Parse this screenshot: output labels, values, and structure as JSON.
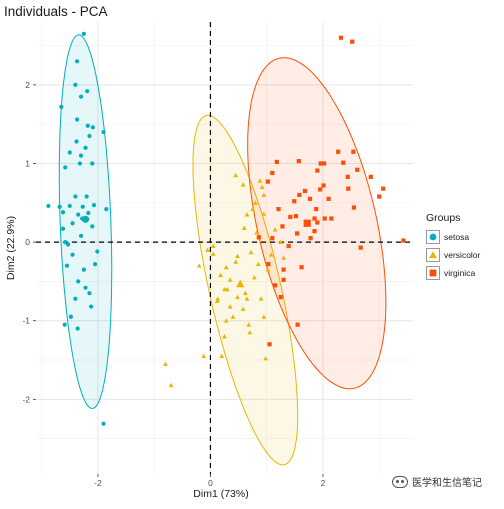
{
  "chart_data": {
    "type": "scatter",
    "title": "Individuals - PCA",
    "xlabel": "Dim1 (73%)",
    "ylabel": "Dim2 (22.9%)",
    "xlim": [
      -3.1,
      3.6
    ],
    "ylim": [
      -2.95,
      2.8
    ],
    "xticks": [
      -2,
      0,
      2
    ],
    "yticks": [
      -2,
      -1,
      0,
      1,
      2
    ],
    "grid": true,
    "reference_lines": {
      "x": 0,
      "y": 0,
      "style": "dashed"
    },
    "legend": {
      "title": "Groups",
      "position": "right"
    },
    "series": [
      {
        "name": "setosa",
        "color": "#00AFBB",
        "marker": "circle",
        "ellipse": {
          "cx": -2.22,
          "cy": 0.26,
          "rx": 2.38,
          "ry": 0.45,
          "angle_deg": 93
        },
        "points": [
          [
            -2.25,
            2.65
          ],
          [
            -2.37,
            2.3
          ],
          [
            -2.4,
            2.0
          ],
          [
            -2.19,
            1.92
          ],
          [
            -2.3,
            1.85
          ],
          [
            -2.65,
            1.72
          ],
          [
            -2.37,
            1.56
          ],
          [
            -2.18,
            1.48
          ],
          [
            -2.09,
            1.46
          ],
          [
            -2.15,
            1.35
          ],
          [
            -2.38,
            1.28
          ],
          [
            -1.9,
            1.4
          ],
          [
            -2.5,
            1.14
          ],
          [
            -2.22,
            1.2
          ],
          [
            -2.3,
            1.1
          ],
          [
            -2.58,
            0.95
          ],
          [
            -2.32,
            1.0
          ],
          [
            -2.1,
            1.0
          ],
          [
            -2.68,
            0.45
          ],
          [
            -2.62,
            0.38
          ],
          [
            -2.4,
            0.58
          ],
          [
            -2.2,
            0.58
          ],
          [
            -2.27,
            0.45
          ],
          [
            -2.07,
            0.47
          ],
          [
            -2.5,
            0.46
          ],
          [
            -2.88,
            0.46
          ],
          [
            -2.35,
            0.35
          ],
          [
            -2.17,
            0.37
          ],
          [
            -2.45,
            0.24
          ],
          [
            -2.28,
            0.3
          ],
          [
            -1.85,
            0.42
          ],
          [
            -2.62,
            0.17
          ],
          [
            -2.3,
            0.08
          ],
          [
            -2.1,
            0.2
          ],
          [
            -2.58,
            0.0
          ],
          [
            -2.55,
            -0.3
          ],
          [
            -2.25,
            -0.35
          ],
          [
            -2.05,
            -0.28
          ],
          [
            -2.35,
            -0.5
          ],
          [
            -2.15,
            -0.65
          ],
          [
            -2.4,
            -0.72
          ],
          [
            -2.22,
            -0.58
          ],
          [
            -2.48,
            -0.95
          ],
          [
            -2.12,
            -0.82
          ],
          [
            -2.59,
            -1.05
          ],
          [
            -2.36,
            -1.1
          ],
          [
            -2.53,
            -0.03
          ],
          [
            -2.01,
            -0.12
          ],
          [
            -2.45,
            -0.16
          ],
          [
            -1.9,
            -2.31
          ]
        ]
      },
      {
        "name": "versicolor",
        "color": "#E7B800",
        "marker": "triangle",
        "ellipse": {
          "cx": 0.62,
          "cy": -0.61,
          "rx": 2.33,
          "ry": 0.62,
          "angle_deg": 108
        },
        "points": [
          [
            0.45,
            0.85
          ],
          [
            0.92,
            0.7
          ],
          [
            0.75,
            0.42
          ],
          [
            0.6,
            0.18
          ],
          [
            0.95,
            0.36
          ],
          [
            0.45,
            -0.25
          ],
          [
            0.62,
            -0.65
          ],
          [
            0.25,
            -0.6
          ],
          [
            0.05,
            -0.15
          ],
          [
            0.18,
            -0.42
          ],
          [
            0.48,
            -0.18
          ],
          [
            0.72,
            -0.13
          ],
          [
            0.35,
            -0.82
          ],
          [
            0.12,
            -0.75
          ],
          [
            0.55,
            -0.55
          ],
          [
            0.85,
            -0.28
          ],
          [
            0.28,
            -1.0
          ],
          [
            0.68,
            -1.05
          ],
          [
            1.08,
            -0.16
          ],
          [
            0.4,
            -0.95
          ],
          [
            1.25,
            0.0
          ],
          [
            1.15,
            0.16
          ],
          [
            1.02,
            -0.35
          ],
          [
            0.9,
            -0.72
          ],
          [
            0.3,
            -0.6
          ],
          [
            0.58,
            -0.85
          ],
          [
            0.78,
            -0.45
          ],
          [
            0.95,
            -0.95
          ],
          [
            0.25,
            -1.2
          ],
          [
            0.2,
            -1.45
          ],
          [
            0.05,
            -0.05
          ],
          [
            -0.05,
            -0.1
          ],
          [
            -0.2,
            -0.3
          ],
          [
            0.28,
            -0.32
          ],
          [
            0.65,
            0.35
          ],
          [
            0.82,
            0.12
          ],
          [
            0.8,
            0.5
          ],
          [
            0.65,
            -0.72
          ],
          [
            0.35,
            -0.48
          ],
          [
            0.48,
            -0.7
          ],
          [
            1.3,
            -0.2
          ],
          [
            0.95,
            0.6
          ],
          [
            0.88,
            0.78
          ],
          [
            0.58,
            0.73
          ],
          [
            0.13,
            -0.72
          ],
          [
            -0.12,
            -1.45
          ],
          [
            -0.7,
            -1.82
          ],
          [
            -0.8,
            -1.55
          ],
          [
            0.7,
            -1.15
          ],
          [
            0.98,
            -1.48
          ]
        ]
      },
      {
        "name": "virginica",
        "color": "#FC4E07",
        "marker": "square",
        "ellipse": {
          "cx": 1.89,
          "cy": 0.24,
          "rx": 2.21,
          "ry": 1.03,
          "angle_deg": 110
        },
        "points": [
          [
            2.32,
            2.6
          ],
          [
            2.52,
            2.55
          ],
          [
            2.27,
            1.15
          ],
          [
            3.07,
            0.68
          ],
          [
            2.61,
            0.92
          ],
          [
            3.0,
            0.58
          ],
          [
            3.43,
            0.02
          ],
          [
            2.36,
            1.01
          ],
          [
            2.1,
            0.55
          ],
          [
            2.45,
            0.68
          ],
          [
            1.88,
            0.42
          ],
          [
            1.57,
            1.03
          ],
          [
            1.58,
            0.6
          ],
          [
            1.85,
            0.3
          ],
          [
            1.42,
            0.32
          ],
          [
            1.28,
            0.2
          ],
          [
            1.21,
            0.42
          ],
          [
            2.01,
            0.72
          ],
          [
            1.9,
            0.91
          ],
          [
            1.95,
            0.67
          ],
          [
            2.15,
            0.3
          ],
          [
            2.55,
            0.44
          ],
          [
            1.78,
            0.05
          ],
          [
            1.68,
            0.65
          ],
          [
            1.39,
            -0.05
          ],
          [
            1.3,
            -0.35
          ],
          [
            1.15,
            -0.55
          ],
          [
            1.03,
            -0.28
          ],
          [
            1.54,
            0.11
          ],
          [
            1.62,
            -0.32
          ],
          [
            1.25,
            -0.7
          ],
          [
            1.52,
            0.33
          ],
          [
            1.02,
            0.77
          ],
          [
            1.18,
            1.02
          ],
          [
            2.85,
            0.83
          ],
          [
            1.3,
            -0.48
          ],
          [
            1.9,
            0.25
          ],
          [
            1.1,
            0.05
          ],
          [
            2.67,
            -0.07
          ],
          [
            2.03,
            0.3
          ],
          [
            1.85,
            0.14
          ],
          [
            2.44,
            0.83
          ],
          [
            1.49,
            0.52
          ],
          [
            2.02,
            1.0
          ],
          [
            2.54,
            1.15
          ],
          [
            1.77,
            0.55
          ],
          [
            0.86,
            0.06
          ],
          [
            1.1,
            0.88
          ],
          [
            1.96,
            1.0
          ],
          [
            1.55,
            -1.05
          ],
          [
            1.05,
            -1.3
          ]
        ]
      }
    ],
    "group_means": [
      {
        "name": "setosa",
        "x": -2.22,
        "y": 0.29
      },
      {
        "name": "versicolor",
        "x": 0.53,
        "y": -0.53
      },
      {
        "name": "virginica",
        "x": 1.72,
        "y": 0.24
      }
    ]
  },
  "watermark": {
    "text": "医学和生信笔记",
    "icon": "wechat-icon"
  }
}
